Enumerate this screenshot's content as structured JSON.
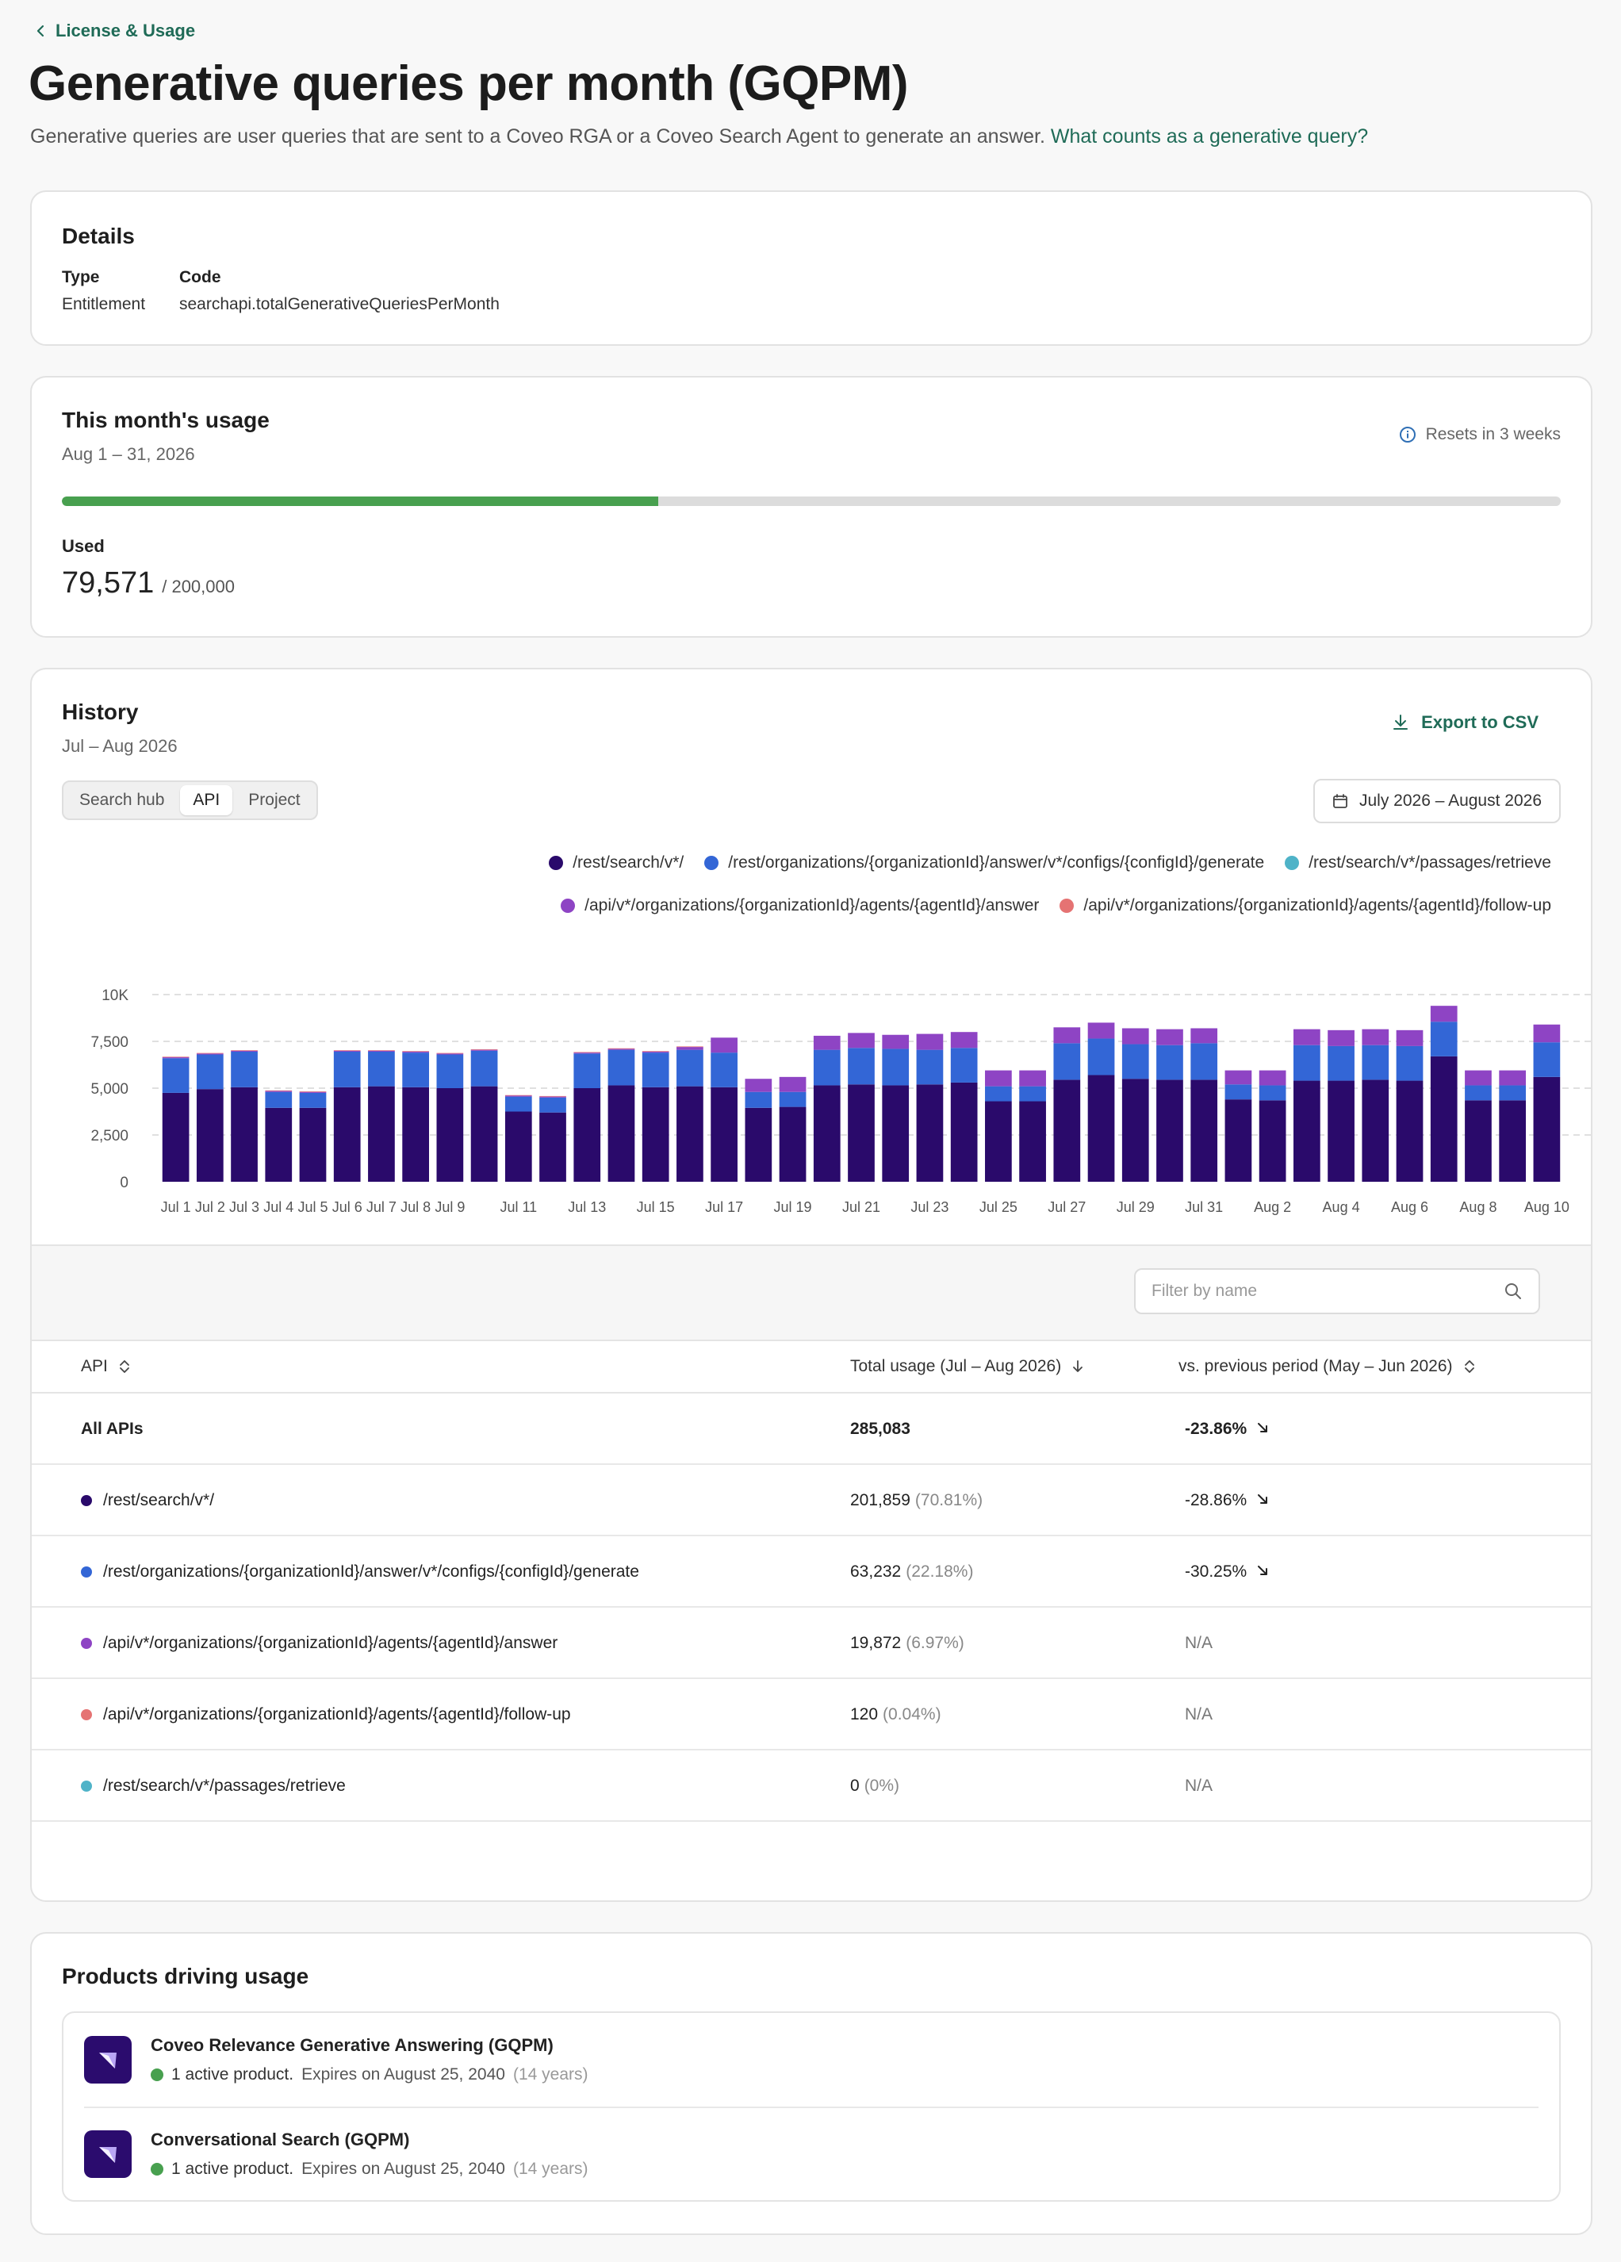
{
  "nav": {
    "back_label": "License & Usage"
  },
  "header": {
    "title": "Generative queries per month (GQPM)",
    "description": "Generative queries are user queries that are sent to a Coveo RGA or a Coveo Search Agent to generate an answer.",
    "help_link": "What counts as a generative query?"
  },
  "details": {
    "title": "Details",
    "type_label": "Type",
    "type_value": "Entitlement",
    "code_label": "Code",
    "code_value": "searchapi.totalGenerativeQueriesPerMonth"
  },
  "usage": {
    "title": "This month's usage",
    "period": "Aug 1 – 31, 2026",
    "resets": "Resets in 3 weeks",
    "used_label": "Used",
    "used_value": "79,571",
    "limit": "/ 200,000",
    "progress_fraction": 0.398,
    "fill_color": "#48a04f"
  },
  "history": {
    "title": "History",
    "period": "Jul – Aug 2026",
    "export_label": "Export to CSV",
    "segments": [
      "Search hub",
      "API",
      "Project"
    ],
    "active_segment": "API",
    "date_range": "July 2026 – August 2026",
    "filter_placeholder": "Filter by name",
    "table": {
      "col_api": "API",
      "col_total": "Total usage (Jul – Aug 2026)",
      "col_prev": "vs. previous period (May – Jun 2026)",
      "rows": [
        {
          "name": "All APIs",
          "total": "285,083",
          "pct": "",
          "prev": "-23.86%"
        },
        {
          "name": "/rest/search/v*/",
          "total": "201,859",
          "pct": "(70.81%)",
          "prev": "-28.86%",
          "color": "#2a0a6b"
        },
        {
          "name": "/rest/organizations/{organizationId}/answer/v*/configs/{configId}/generate",
          "total": "63,232",
          "pct": "(22.18%)",
          "prev": "-30.25%",
          "color": "#3366d6"
        },
        {
          "name": "/api/v*/organizations/{organizationId}/agents/{agentId}/answer",
          "total": "19,872",
          "pct": "(6.97%)",
          "prev": "N/A",
          "color": "#8e44c4"
        },
        {
          "name": "/api/v*/organizations/{organizationId}/agents/{agentId}/follow-up",
          "total": "120",
          "pct": "(0.04%)",
          "prev": "N/A",
          "color": "#e57373"
        },
        {
          "name": "/rest/search/v*/passages/retrieve",
          "total": "0",
          "pct": "(0%)",
          "prev": "N/A",
          "color": "#4fb3c8"
        }
      ]
    }
  },
  "chart_data": {
    "type": "bar",
    "stacked": true,
    "categories": [
      "Jul 1",
      "Jul 2",
      "Jul 3",
      "Jul 4",
      "Jul 5",
      "Jul 6",
      "Jul 7",
      "Jul 8",
      "Jul 9",
      "Jul 10",
      "Jul 11",
      "Jul 12",
      "Jul 13",
      "Jul 14",
      "Jul 15",
      "Jul 16",
      "Jul 17",
      "Jul 18",
      "Jul 19",
      "Jul 20",
      "Jul 21",
      "Jul 22",
      "Jul 23",
      "Jul 24",
      "Jul 25",
      "Jul 26",
      "Jul 27",
      "Jul 28",
      "Jul 29",
      "Jul 30",
      "Jul 31",
      "Aug 1",
      "Aug 2",
      "Aug 3",
      "Aug 4",
      "Aug 5",
      "Aug 6",
      "Aug 7",
      "Aug 8",
      "Aug 9",
      "Aug 10"
    ],
    "tick_labels": [
      "Jul 1",
      "Jul 2",
      "Jul 3",
      "Jul 4",
      "Jul 5",
      "Jul 6",
      "Jul 7",
      "Jul 8",
      "Jul 9",
      "",
      "Jul 11",
      "",
      "Jul 13",
      "",
      "Jul 15",
      "",
      "Jul 17",
      "",
      "Jul 19",
      "",
      "Jul 21",
      "",
      "Jul 23",
      "",
      "Jul 25",
      "",
      "Jul 27",
      "",
      "Jul 29",
      "",
      "Jul 31",
      "",
      "Aug 2",
      "",
      "Aug 4",
      "",
      "Aug 6",
      "",
      "Aug 8",
      "",
      "Aug 10"
    ],
    "ylim": [
      0,
      10000
    ],
    "yticks": [
      0,
      2500,
      5000,
      7500,
      10000
    ],
    "ytick_labels": [
      "0",
      "2,500",
      "5,000",
      "7,500",
      "10K"
    ],
    "grid": true,
    "legend_position": "top-right",
    "legend_rows": [
      [
        "/rest/search/v*/",
        "/rest/organizations/{organizationId}/answer/v*/configs/{configId}/generate",
        "/rest/search/v*/passages/retrieve"
      ],
      [
        "/api/v*/organizations/{organizationId}/agents/{agentId}/answer",
        "/api/v*/organizations/{organizationId}/agents/{agentId}/follow-up"
      ]
    ],
    "series": [
      {
        "name": "/rest/search/v*/",
        "color": "#2a0a6b",
        "values": [
          4750,
          4950,
          5050,
          3950,
          3950,
          5050,
          5100,
          5050,
          5000,
          5100,
          3750,
          3700,
          5000,
          5150,
          5050,
          5100,
          5050,
          3950,
          4000,
          5150,
          5200,
          5150,
          5200,
          5300,
          4300,
          4300,
          5450,
          5700,
          5500,
          5450,
          5450,
          4400,
          4350,
          5400,
          5400,
          5450,
          5400,
          6700,
          4350,
          4350,
          5600
        ]
      },
      {
        "name": "/rest/organizations/{organizationId}/answer/v*/configs/{configId}/generate",
        "color": "#3366d6",
        "values": [
          1850,
          1850,
          1900,
          850,
          800,
          1900,
          1850,
          1850,
          1800,
          1900,
          800,
          800,
          1850,
          1900,
          1850,
          1950,
          1850,
          850,
          800,
          1900,
          1950,
          1950,
          1850,
          1850,
          800,
          800,
          1950,
          1950,
          1850,
          1850,
          1950,
          800,
          800,
          1900,
          1850,
          1850,
          1850,
          1850,
          800,
          800,
          1850
        ]
      },
      {
        "name": "/rest/search/v*/passages/retrieve",
        "color": "#4fb3c8",
        "values": [
          0,
          0,
          0,
          0,
          0,
          0,
          0,
          0,
          0,
          0,
          0,
          0,
          0,
          0,
          0,
          0,
          0,
          0,
          0,
          0,
          0,
          0,
          0,
          0,
          0,
          0,
          0,
          0,
          0,
          0,
          0,
          0,
          0,
          0,
          0,
          0,
          0,
          0,
          0,
          0,
          0
        ]
      },
      {
        "name": "/api/v*/organizations/{organizationId}/agents/{agentId}/answer",
        "color": "#8e44c4",
        "values": [
          50,
          50,
          50,
          50,
          50,
          50,
          50,
          50,
          50,
          50,
          50,
          50,
          50,
          50,
          50,
          150,
          800,
          700,
          800,
          750,
          800,
          750,
          850,
          850,
          850,
          850,
          850,
          850,
          850,
          850,
          800,
          750,
          800,
          850,
          850,
          850,
          850,
          850,
          800,
          800,
          950
        ]
      },
      {
        "name": "/api/v*/organizations/{organizationId}/agents/{agentId}/follow-up",
        "color": "#e57373",
        "values": [
          30,
          30,
          30,
          30,
          30,
          30,
          30,
          30,
          30,
          30,
          30,
          30,
          30,
          30,
          30,
          30,
          0,
          0,
          0,
          0,
          0,
          0,
          0,
          0,
          0,
          0,
          0,
          0,
          0,
          0,
          0,
          0,
          0,
          0,
          0,
          0,
          0,
          0,
          0,
          0,
          0
        ]
      }
    ]
  },
  "products": {
    "title": "Products driving usage",
    "items": [
      {
        "name": "Coveo Relevance Generative Answering (GQPM)",
        "status": "1 active product.",
        "expires": "Expires on August 25, 2040",
        "years": "(14 years)"
      },
      {
        "name": "Conversational Search (GQPM)",
        "status": "1 active product.",
        "expires": "Expires on August 25, 2040",
        "years": "(14 years)"
      }
    ]
  }
}
